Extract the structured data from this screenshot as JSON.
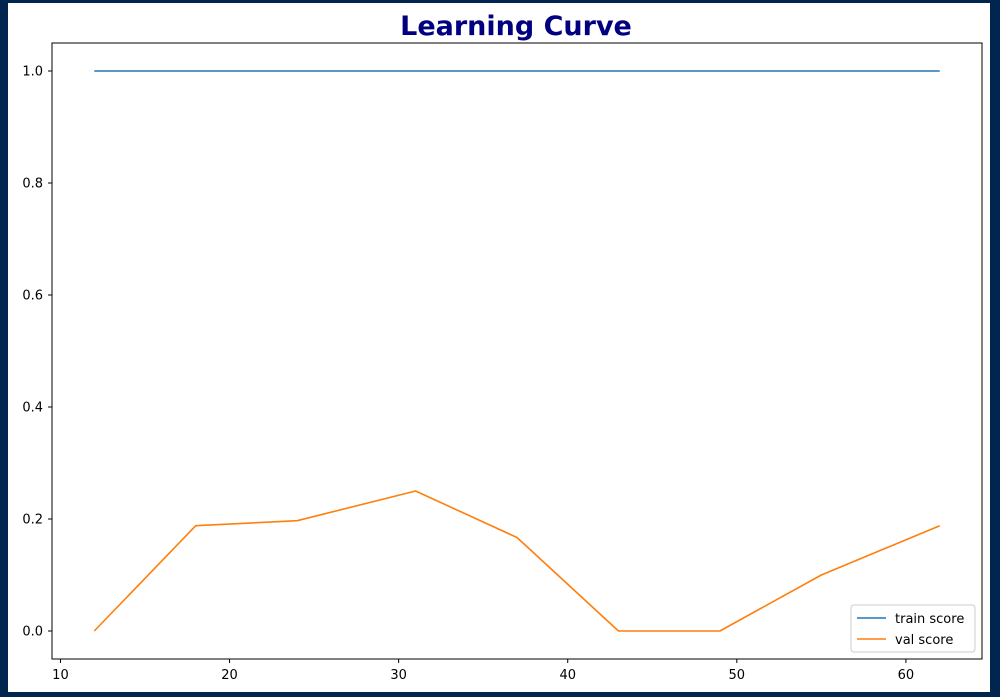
{
  "chart_data": {
    "type": "line",
    "title": "Learning Curve",
    "title_color": "#000080",
    "xlabel": "",
    "ylabel": "",
    "xlim": [
      9.5,
      64.5
    ],
    "ylim": [
      -0.05,
      1.05
    ],
    "xticks": [
      10,
      20,
      30,
      40,
      50,
      60
    ],
    "yticks": [
      0.0,
      0.2,
      0.4,
      0.6,
      0.8,
      1.0
    ],
    "xtick_labels": [
      "10",
      "20",
      "30",
      "40",
      "50",
      "60"
    ],
    "ytick_labels": [
      "0.0",
      "0.2",
      "0.4",
      "0.6",
      "0.8",
      "1.0"
    ],
    "grid": false,
    "legend_position": "lower-right",
    "x": [
      12,
      18,
      24,
      31,
      37,
      43,
      49,
      55,
      62
    ],
    "series": [
      {
        "name": "train score",
        "color": "#1f77b4",
        "values": [
          1.0,
          1.0,
          1.0,
          1.0,
          1.0,
          1.0,
          1.0,
          1.0,
          1.0
        ]
      },
      {
        "name": "val score",
        "color": "#ff7f0e",
        "values": [
          0.0,
          0.188,
          0.197,
          0.25,
          0.167,
          0.0,
          0.0,
          0.1,
          0.188
        ]
      }
    ]
  }
}
